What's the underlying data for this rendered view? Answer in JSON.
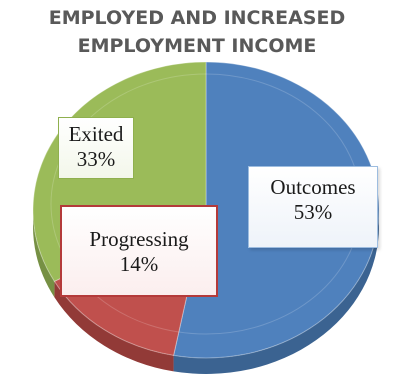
{
  "chart_data": {
    "type": "pie",
    "title": "EMPLOYED AND INCREASED EMPLOYMENT INCOME",
    "title_lines": [
      "EMPLOYED AND INCREASED",
      "EMPLOYMENT INCOME"
    ],
    "slices": [
      {
        "label": "Outcomes",
        "value": 53,
        "value_label": "53%",
        "color": "#4f81bd",
        "side_color": "#3b6391"
      },
      {
        "label": "Progressing",
        "value": 14,
        "value_label": "14%",
        "color": "#c0504d",
        "side_color": "#923a37"
      },
      {
        "label": "Exited",
        "value": 33,
        "value_label": "33%",
        "color": "#9bbb59",
        "side_color": "#769044"
      }
    ]
  }
}
